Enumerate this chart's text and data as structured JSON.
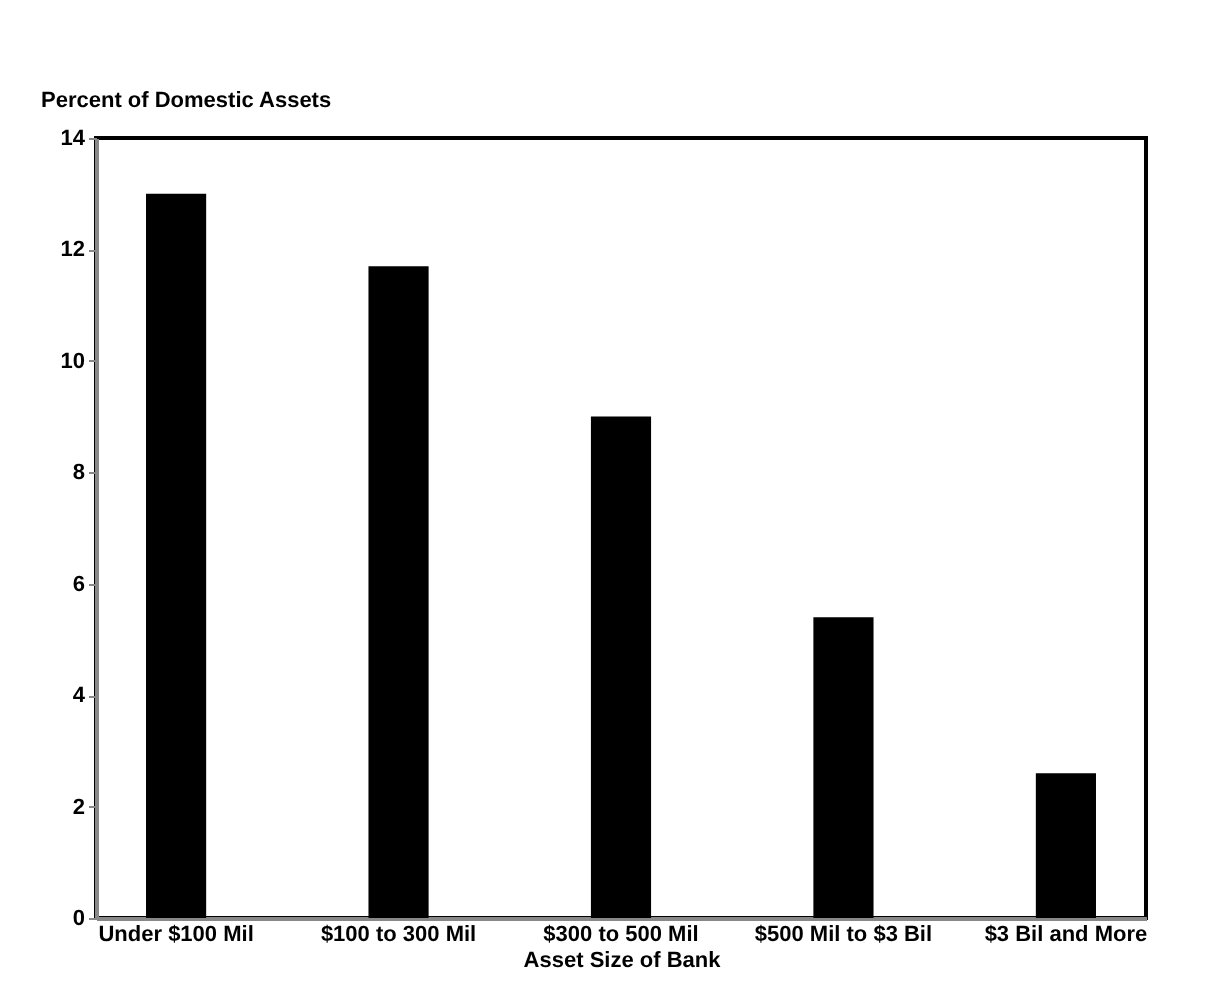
{
  "chart_data": {
    "type": "bar",
    "ylabel": "Percent of Domestic Assets",
    "xlabel": "Asset Size of Bank",
    "categories": [
      "Under $100 Mil",
      "$100 to 300 Mil",
      "$300 to 500 Mil",
      "$500 Mil to $3 Bil",
      "$3 Bil and More"
    ],
    "values": [
      13.0,
      11.7,
      9.0,
      5.4,
      2.6
    ],
    "color": "#000000",
    "ylim": [
      0,
      14
    ],
    "yticks": [
      0,
      2,
      4,
      6,
      8,
      10,
      12,
      14
    ],
    "grid": false
  }
}
